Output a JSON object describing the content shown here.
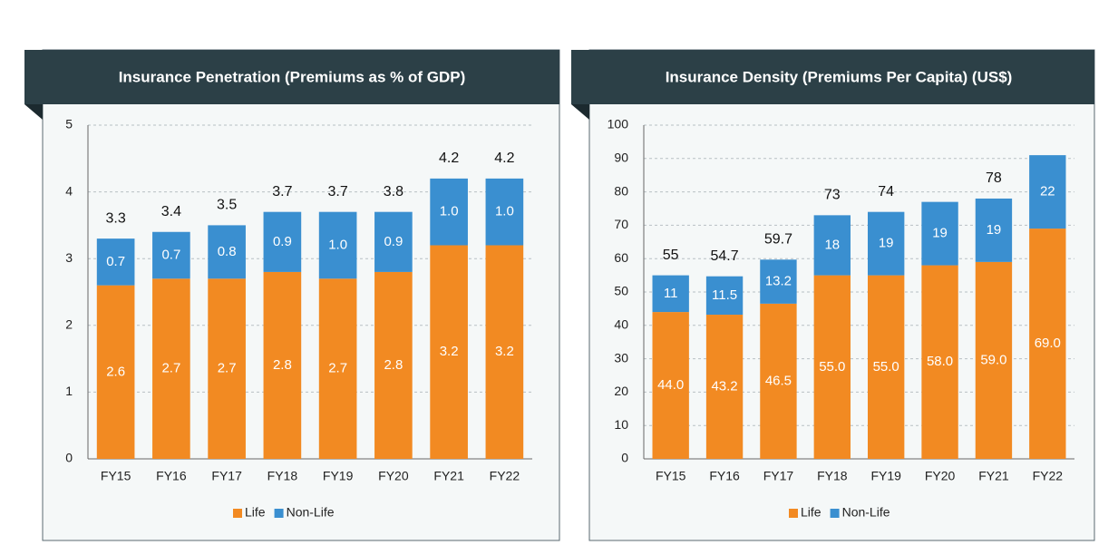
{
  "chart_data": [
    {
      "type": "stacked_bar",
      "title": "Insurance Penetration (Premiums as % of GDP)",
      "categories": [
        "FY15",
        "FY16",
        "FY17",
        "FY18",
        "FY19",
        "FY20",
        "FY21",
        "FY22"
      ],
      "series": [
        {
          "name": "Life",
          "color": "#f28a22",
          "values": [
            2.6,
            2.7,
            2.7,
            2.8,
            2.7,
            2.8,
            3.2,
            3.2
          ],
          "value_labels": [
            "2.6",
            "2.7",
            "2.7",
            "2.8",
            "2.7",
            "2.8",
            "3.2",
            "3.2"
          ]
        },
        {
          "name": "Non-Life",
          "color": "#3a8fd0",
          "values": [
            0.7,
            0.7,
            0.8,
            0.9,
            1.0,
            0.9,
            1.0,
            1.0
          ],
          "value_labels": [
            "0.7",
            "0.7",
            "0.8",
            "0.9",
            "1.0",
            "0.9",
            "1.0",
            "1.0"
          ]
        }
      ],
      "totals": [
        3.3,
        3.4,
        3.5,
        3.7,
        3.7,
        3.8,
        4.2,
        4.2
      ],
      "ylim": [
        0,
        5
      ],
      "yticks": [
        0,
        1,
        2,
        3,
        4,
        5
      ],
      "grid": true,
      "legend": "bottom"
    },
    {
      "type": "stacked_bar",
      "title": "Insurance Density (Premiums Per Capita) (US$)",
      "categories": [
        "FY15",
        "FY16",
        "FY17",
        "FY18",
        "FY19",
        "FY20",
        "FY21",
        "FY22"
      ],
      "series": [
        {
          "name": "Life",
          "color": "#f28a22",
          "values": [
            44.0,
            43.2,
            46.5,
            55.0,
            55.0,
            58.0,
            59.0,
            69.0
          ],
          "value_labels": [
            "44.0",
            "43.2",
            "46.5",
            "55.0",
            "55.0",
            "58.0",
            "59.0",
            "69.0"
          ]
        },
        {
          "name": "Non-Life",
          "color": "#3a8fd0",
          "values": [
            11,
            11.5,
            13.2,
            18,
            19,
            19,
            19,
            22
          ],
          "value_labels": [
            "11",
            "11.5",
            "13.2",
            "18",
            "19",
            "19",
            "19",
            "22"
          ]
        }
      ],
      "totals": [
        55,
        54.7,
        59.7,
        73,
        74,
        null,
        78,
        null
      ],
      "ylim": [
        0,
        100
      ],
      "yticks": [
        0,
        10,
        20,
        30,
        40,
        50,
        60,
        70,
        80,
        90,
        100
      ],
      "grid": true,
      "legend": "bottom"
    }
  ]
}
